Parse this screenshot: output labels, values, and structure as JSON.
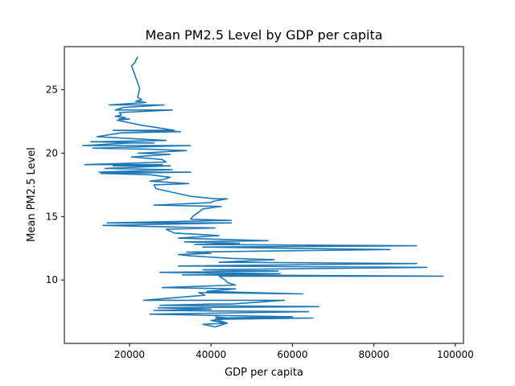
{
  "chart_data": {
    "type": "line",
    "title": "Mean PM2.5 Level by GDP per capita",
    "xlabel": "GDP per capita",
    "ylabel": "Mean PM2.5 Level",
    "xlim": [
      4000,
      102000
    ],
    "ylim": [
      5,
      28.4
    ],
    "xticks": [
      20000,
      40000,
      60000,
      80000,
      100000
    ],
    "yticks": [
      10,
      15,
      20,
      25
    ],
    "grid": false,
    "color": "#1f77b4",
    "series": [
      {
        "name": "",
        "points": [
          [
            22000,
            27.6
          ],
          [
            21200,
            27.1
          ],
          [
            20500,
            26.9
          ],
          [
            22500,
            25.1
          ],
          [
            22000,
            24.4
          ],
          [
            23000,
            24.2
          ],
          [
            21500,
            24.1
          ],
          [
            24000,
            24.0
          ],
          [
            15000,
            23.8
          ],
          [
            28500,
            23.8
          ],
          [
            18500,
            23.6
          ],
          [
            16500,
            23.4
          ],
          [
            30500,
            23.4
          ],
          [
            17500,
            23.2
          ],
          [
            18000,
            23.0
          ],
          [
            16500,
            22.9
          ],
          [
            19000,
            22.8
          ],
          [
            17500,
            22.7
          ],
          [
            20000,
            22.7
          ],
          [
            17000,
            22.6
          ],
          [
            23000,
            22.2
          ],
          [
            31000,
            21.8
          ],
          [
            16000,
            21.8
          ],
          [
            32500,
            21.7
          ],
          [
            18000,
            21.6
          ],
          [
            12000,
            21.3
          ],
          [
            29000,
            21.0
          ],
          [
            10500,
            20.9
          ],
          [
            26000,
            20.8
          ],
          [
            20000,
            20.8
          ],
          [
            8500,
            20.6
          ],
          [
            35000,
            20.6
          ],
          [
            11000,
            20.4
          ],
          [
            26000,
            20.3
          ],
          [
            34000,
            20.2
          ],
          [
            22000,
            20.0
          ],
          [
            30000,
            19.9
          ],
          [
            20500,
            19.7
          ],
          [
            28000,
            19.5
          ],
          [
            29000,
            19.3
          ],
          [
            9000,
            19.1
          ],
          [
            28000,
            19.1
          ],
          [
            16000,
            19.0
          ],
          [
            30000,
            19.0
          ],
          [
            14000,
            18.8
          ],
          [
            30500,
            18.7
          ],
          [
            12500,
            18.5
          ],
          [
            35000,
            18.5
          ],
          [
            13000,
            18.4
          ],
          [
            25000,
            18.3
          ],
          [
            30000,
            18.1
          ],
          [
            28000,
            17.9
          ],
          [
            25000,
            17.8
          ],
          [
            34500,
            17.6
          ],
          [
            26000,
            17.5
          ],
          [
            26500,
            17.2
          ],
          [
            35000,
            16.6
          ],
          [
            41000,
            16.4
          ],
          [
            44000,
            16.4
          ],
          [
            40500,
            16.2
          ],
          [
            40000,
            16.1
          ],
          [
            26000,
            15.9
          ],
          [
            42500,
            15.8
          ],
          [
            38000,
            15.6
          ],
          [
            35500,
            15.0
          ],
          [
            35000,
            14.8
          ],
          [
            45000,
            14.7
          ],
          [
            14500,
            14.5
          ],
          [
            45000,
            14.5
          ],
          [
            13500,
            14.3
          ],
          [
            41000,
            14.1
          ],
          [
            29000,
            14.0
          ],
          [
            31000,
            13.7
          ],
          [
            37000,
            13.6
          ],
          [
            42000,
            13.5
          ],
          [
            32000,
            13.3
          ],
          [
            54000,
            13.1
          ],
          [
            33500,
            13.0
          ],
          [
            47000,
            12.9
          ],
          [
            36000,
            12.8
          ],
          [
            90500,
            12.7
          ],
          [
            38000,
            12.6
          ],
          [
            58000,
            12.5
          ],
          [
            84000,
            12.4
          ],
          [
            34000,
            12.2
          ],
          [
            40000,
            12.1
          ],
          [
            32000,
            12.0
          ],
          [
            35000,
            11.9
          ],
          [
            45000,
            11.7
          ],
          [
            55500,
            11.6
          ],
          [
            42000,
            11.4
          ],
          [
            90500,
            11.3
          ],
          [
            32000,
            11.1
          ],
          [
            93000,
            11.0
          ],
          [
            38000,
            10.8
          ],
          [
            56500,
            10.7
          ],
          [
            27500,
            10.6
          ],
          [
            57000,
            10.5
          ],
          [
            33000,
            10.4
          ],
          [
            97000,
            10.3
          ],
          [
            42000,
            10.3
          ],
          [
            43500,
            10.0
          ],
          [
            44000,
            9.8
          ],
          [
            46000,
            9.6
          ],
          [
            28000,
            9.4
          ],
          [
            46000,
            9.3
          ],
          [
            39000,
            9.1
          ],
          [
            62500,
            8.9
          ],
          [
            37000,
            9.0
          ],
          [
            38500,
            8.8
          ],
          [
            23500,
            8.4
          ],
          [
            58000,
            8.4
          ],
          [
            45000,
            8.1
          ],
          [
            40000,
            8.1
          ],
          [
            27500,
            8.0
          ],
          [
            66500,
            7.9
          ],
          [
            27000,
            7.8
          ],
          [
            40000,
            7.7
          ],
          [
            26000,
            7.6
          ],
          [
            64000,
            7.5
          ],
          [
            25000,
            7.3
          ],
          [
            60000,
            7.1
          ],
          [
            41500,
            7.0
          ],
          [
            65000,
            7.0
          ],
          [
            43000,
            6.9
          ],
          [
            40000,
            6.8
          ],
          [
            44000,
            6.6
          ],
          [
            38000,
            6.5
          ],
          [
            41000,
            6.3
          ],
          [
            44000,
            6.6
          ],
          [
            41000,
            6.9
          ],
          [
            44500,
            7.0
          ],
          [
            41000,
            7.1
          ]
        ]
      }
    ]
  }
}
